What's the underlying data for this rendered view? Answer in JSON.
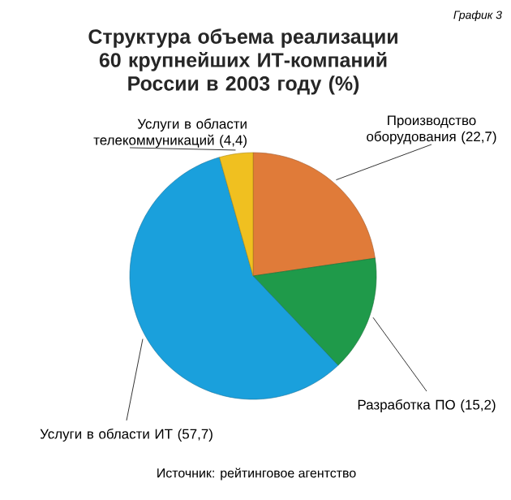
{
  "chart_data": {
    "type": "pie",
    "title": "Структура объема реализации 60 крупнейших ИТ-компаний России в 2003 году (%)",
    "categories": [
      "Производство оборудования",
      "Разработка ПО",
      "Услуги в области ИТ",
      "Услуги в области телекоммуникаций"
    ],
    "values": [
      22.7,
      15.2,
      57.7,
      4.4
    ],
    "value_labels": [
      "(22,7)",
      "(15,2)",
      "(57,7)",
      "(4,4)"
    ],
    "colors": [
      "#e07b39",
      "#1f9a4a",
      "#1aa0dc",
      "#f0c020"
    ],
    "annotations": [
      "График 3",
      "Источник: рейтинговое агентство"
    ]
  }
}
